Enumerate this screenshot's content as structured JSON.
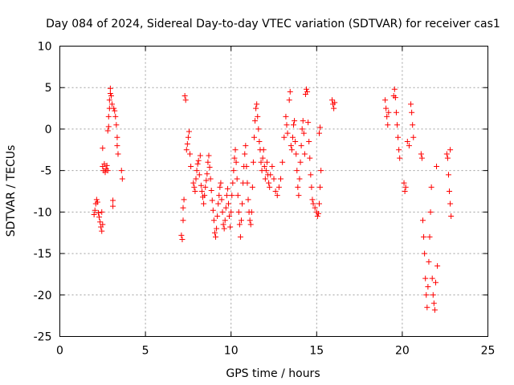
{
  "chart_data": {
    "type": "scatter",
    "title": "Day 084 of 2024, Sidereal Day-to-day VTEC variation (SDTVAR) for receiver cas1",
    "xlabel": "GPS time / hours",
    "ylabel": "SDTVAR / TECUs",
    "xlim": [
      0,
      25
    ],
    "ylim": [
      -25,
      10
    ],
    "xticks": [
      0,
      5,
      10,
      15,
      20,
      25
    ],
    "yticks": [
      -25,
      -20,
      -15,
      -10,
      -5,
      0,
      5,
      10
    ],
    "xtick_labels": [
      "0",
      "5",
      "10",
      "15",
      "20",
      "25"
    ],
    "ytick_labels": [
      "-25",
      "-20",
      "-15",
      "-10",
      "-5",
      "0",
      "5",
      "10"
    ],
    "grid": true,
    "marker": "+",
    "color": "#ff0000",
    "series": [
      {
        "name": "SDTVAR",
        "points": [
          [
            2.0,
            -10.3
          ],
          [
            2.05,
            -9.8
          ],
          [
            2.1,
            -9.0
          ],
          [
            2.15,
            -8.5
          ],
          [
            2.2,
            -8.8
          ],
          [
            2.25,
            -10.1
          ],
          [
            2.3,
            -10.6
          ],
          [
            2.35,
            -11.2
          ],
          [
            2.4,
            -11.8
          ],
          [
            2.45,
            -12.3
          ],
          [
            2.5,
            -11.5
          ],
          [
            2.45,
            -10.0
          ],
          [
            2.5,
            -2.3
          ],
          [
            2.5,
            -4.5
          ],
          [
            2.55,
            -5.0
          ],
          [
            2.6,
            -4.2
          ],
          [
            2.65,
            -5.2
          ],
          [
            2.7,
            -4.8
          ],
          [
            2.75,
            -4.4
          ],
          [
            2.8,
            -5.0
          ],
          [
            2.8,
            -0.2
          ],
          [
            2.85,
            0.3
          ],
          [
            2.85,
            1.5
          ],
          [
            2.9,
            2.5
          ],
          [
            2.9,
            3.5
          ],
          [
            2.95,
            4.3
          ],
          [
            2.95,
            4.9
          ],
          [
            3.0,
            4.0
          ],
          [
            3.05,
            3.0
          ],
          [
            3.1,
            -8.6
          ],
          [
            3.1,
            -9.3
          ],
          [
            3.15,
            2.5
          ],
          [
            3.2,
            2.2
          ],
          [
            3.25,
            1.5
          ],
          [
            3.3,
            0.5
          ],
          [
            3.35,
            -1.0
          ],
          [
            3.35,
            -2.0
          ],
          [
            3.4,
            -3.0
          ],
          [
            3.6,
            -5.0
          ],
          [
            3.65,
            -6.0
          ],
          [
            7.1,
            -12.8
          ],
          [
            7.15,
            -13.3
          ],
          [
            7.2,
            -9.5
          ],
          [
            7.25,
            -8.5
          ],
          [
            7.2,
            -11.0
          ],
          [
            7.3,
            4.0
          ],
          [
            7.35,
            3.5
          ],
          [
            7.4,
            -2.5
          ],
          [
            7.45,
            -1.8
          ],
          [
            7.5,
            -1.0
          ],
          [
            7.55,
            -0.3
          ],
          [
            7.6,
            -3.0
          ],
          [
            7.65,
            -4.5
          ],
          [
            7.8,
            -6.5
          ],
          [
            7.85,
            -7.0
          ],
          [
            7.9,
            -7.5
          ],
          [
            7.95,
            -6.0
          ],
          [
            8.0,
            -5.0
          ],
          [
            8.05,
            -4.2
          ],
          [
            8.1,
            -3.8
          ],
          [
            8.15,
            -5.5
          ],
          [
            8.2,
            -3.2
          ],
          [
            8.25,
            -6.8
          ],
          [
            8.3,
            -7.5
          ],
          [
            8.35,
            -8.2
          ],
          [
            8.4,
            -9.0
          ],
          [
            8.45,
            -8.0
          ],
          [
            8.5,
            -7.0
          ],
          [
            8.55,
            -6.2
          ],
          [
            8.6,
            -5.4
          ],
          [
            8.65,
            -4.0
          ],
          [
            8.7,
            -3.2
          ],
          [
            8.75,
            -4.6
          ],
          [
            8.8,
            -6.0
          ],
          [
            8.85,
            -7.4
          ],
          [
            8.9,
            -8.6
          ],
          [
            8.95,
            -9.8
          ],
          [
            9.0,
            -11.0
          ],
          [
            9.05,
            -12.5
          ],
          [
            9.1,
            -13.0
          ],
          [
            9.15,
            -12.0
          ],
          [
            9.2,
            -10.5
          ],
          [
            9.25,
            -9.0
          ],
          [
            9.3,
            -8.0
          ],
          [
            9.35,
            -7.0
          ],
          [
            9.4,
            -6.5
          ],
          [
            9.45,
            -8.5
          ],
          [
            9.5,
            -10.0
          ],
          [
            9.55,
            -11.5
          ],
          [
            9.6,
            -12.0
          ],
          [
            9.65,
            -11.0
          ],
          [
            9.7,
            -9.5
          ],
          [
            9.75,
            -8.0
          ],
          [
            9.8,
            -7.2
          ],
          [
            9.85,
            -9.0
          ],
          [
            9.9,
            -10.5
          ],
          [
            9.95,
            -11.8
          ],
          [
            10.0,
            -10.0
          ],
          [
            10.05,
            -8.0
          ],
          [
            10.1,
            -6.5
          ],
          [
            10.15,
            -5.0
          ],
          [
            10.2,
            -3.5
          ],
          [
            10.25,
            -2.5
          ],
          [
            10.3,
            -4.0
          ],
          [
            10.35,
            -6.0
          ],
          [
            10.4,
            -8.0
          ],
          [
            10.45,
            -10.0
          ],
          [
            10.5,
            -11.5
          ],
          [
            10.55,
            -13.0
          ],
          [
            10.6,
            -11.0
          ],
          [
            10.65,
            -9.0
          ],
          [
            10.7,
            -6.5
          ],
          [
            10.75,
            -4.5
          ],
          [
            10.8,
            -3.0
          ],
          [
            10.85,
            -2.0
          ],
          [
            10.9,
            -4.5
          ],
          [
            10.95,
            -6.5
          ],
          [
            11.0,
            -8.5
          ],
          [
            11.05,
            -10.0
          ],
          [
            11.1,
            -11.0
          ],
          [
            11.15,
            -11.5
          ],
          [
            11.2,
            -10.0
          ],
          [
            11.25,
            -7.0
          ],
          [
            11.3,
            -4.0
          ],
          [
            11.35,
            -1.0
          ],
          [
            11.4,
            1.0
          ],
          [
            11.45,
            2.5
          ],
          [
            11.5,
            3.0
          ],
          [
            11.55,
            1.5
          ],
          [
            11.6,
            0.0
          ],
          [
            11.65,
            -1.5
          ],
          [
            11.7,
            -2.5
          ],
          [
            11.75,
            -4.0
          ],
          [
            11.8,
            -5.0
          ],
          [
            11.85,
            -3.5
          ],
          [
            11.9,
            -2.5
          ],
          [
            11.95,
            -4.5
          ],
          [
            12.0,
            -6.0
          ],
          [
            12.05,
            -5.0
          ],
          [
            12.1,
            -4.0
          ],
          [
            12.15,
            -5.5
          ],
          [
            12.2,
            -6.5
          ],
          [
            12.25,
            -7.0
          ],
          [
            12.3,
            -5.5
          ],
          [
            12.4,
            -4.5
          ],
          [
            12.5,
            -6.0
          ],
          [
            12.6,
            -7.5
          ],
          [
            12.7,
            -8.0
          ],
          [
            12.8,
            -7.0
          ],
          [
            12.9,
            -6.0
          ],
          [
            13.0,
            -4.0
          ],
          [
            13.1,
            -1.0
          ],
          [
            13.2,
            1.5
          ],
          [
            13.25,
            0.5
          ],
          [
            13.3,
            -0.5
          ],
          [
            13.4,
            3.5
          ],
          [
            13.45,
            4.5
          ],
          [
            13.5,
            -2.0
          ],
          [
            13.55,
            -2.5
          ],
          [
            13.6,
            -1.0
          ],
          [
            13.65,
            0.5
          ],
          [
            13.7,
            1.0
          ],
          [
            13.75,
            -1.5
          ],
          [
            13.8,
            -3.0
          ],
          [
            13.85,
            -5.0
          ],
          [
            13.9,
            -7.0
          ],
          [
            13.95,
            -8.0
          ],
          [
            14.0,
            -6.0
          ],
          [
            14.05,
            -4.0
          ],
          [
            14.1,
            -2.0
          ],
          [
            14.15,
            0.0
          ],
          [
            14.2,
            1.0
          ],
          [
            14.25,
            -0.5
          ],
          [
            14.3,
            -3.0
          ],
          [
            14.35,
            4.2
          ],
          [
            14.4,
            4.8
          ],
          [
            14.45,
            4.5
          ],
          [
            14.5,
            0.8
          ],
          [
            14.55,
            -1.5
          ],
          [
            14.6,
            -3.5
          ],
          [
            14.65,
            -5.5
          ],
          [
            14.7,
            -7.0
          ],
          [
            14.75,
            -8.5
          ],
          [
            14.8,
            -9.0
          ],
          [
            14.9,
            -9.5
          ],
          [
            15.0,
            -10.0
          ],
          [
            15.05,
            -10.5
          ],
          [
            15.1,
            -10.2
          ],
          [
            15.15,
            -9.0
          ],
          [
            15.2,
            -7.0
          ],
          [
            15.25,
            -5.0
          ],
          [
            15.15,
            -0.5
          ],
          [
            15.2,
            0.2
          ],
          [
            15.9,
            3.5
          ],
          [
            15.95,
            3.0
          ],
          [
            16.0,
            2.5
          ],
          [
            16.05,
            3.2
          ],
          [
            19.0,
            3.5
          ],
          [
            19.05,
            2.5
          ],
          [
            19.1,
            1.5
          ],
          [
            19.15,
            0.5
          ],
          [
            19.2,
            2.0
          ],
          [
            19.5,
            4.0
          ],
          [
            19.55,
            4.8
          ],
          [
            19.6,
            3.8
          ],
          [
            19.65,
            2.0
          ],
          [
            19.7,
            0.5
          ],
          [
            19.75,
            -1.0
          ],
          [
            19.8,
            -2.5
          ],
          [
            19.85,
            -3.5
          ],
          [
            20.1,
            -6.5
          ],
          [
            20.15,
            -7.5
          ],
          [
            20.2,
            -7.0
          ],
          [
            20.3,
            -1.5
          ],
          [
            20.4,
            -2.0
          ],
          [
            20.5,
            3.0
          ],
          [
            20.55,
            2.0
          ],
          [
            20.6,
            0.5
          ],
          [
            20.65,
            -1.0
          ],
          [
            21.1,
            -3.0
          ],
          [
            21.15,
            -3.5
          ],
          [
            21.2,
            -11.0
          ],
          [
            21.25,
            -13.0
          ],
          [
            21.3,
            -15.0
          ],
          [
            21.35,
            -18.0
          ],
          [
            21.4,
            -20.0
          ],
          [
            21.45,
            -21.5
          ],
          [
            21.5,
            -19.0
          ],
          [
            21.55,
            -16.0
          ],
          [
            21.6,
            -13.0
          ],
          [
            21.65,
            -10.0
          ],
          [
            21.7,
            -7.0
          ],
          [
            21.75,
            -18.0
          ],
          [
            21.8,
            -20.0
          ],
          [
            21.85,
            -21.0
          ],
          [
            21.9,
            -21.8
          ],
          [
            21.95,
            -18.5
          ],
          [
            22.0,
            -4.5
          ],
          [
            22.05,
            -16.5
          ],
          [
            22.6,
            -3.0
          ],
          [
            22.65,
            -3.5
          ],
          [
            22.7,
            -5.5
          ],
          [
            22.75,
            -7.5
          ],
          [
            22.8,
            -9.0
          ],
          [
            22.85,
            -10.5
          ],
          [
            22.8,
            -2.5
          ]
        ]
      }
    ]
  }
}
